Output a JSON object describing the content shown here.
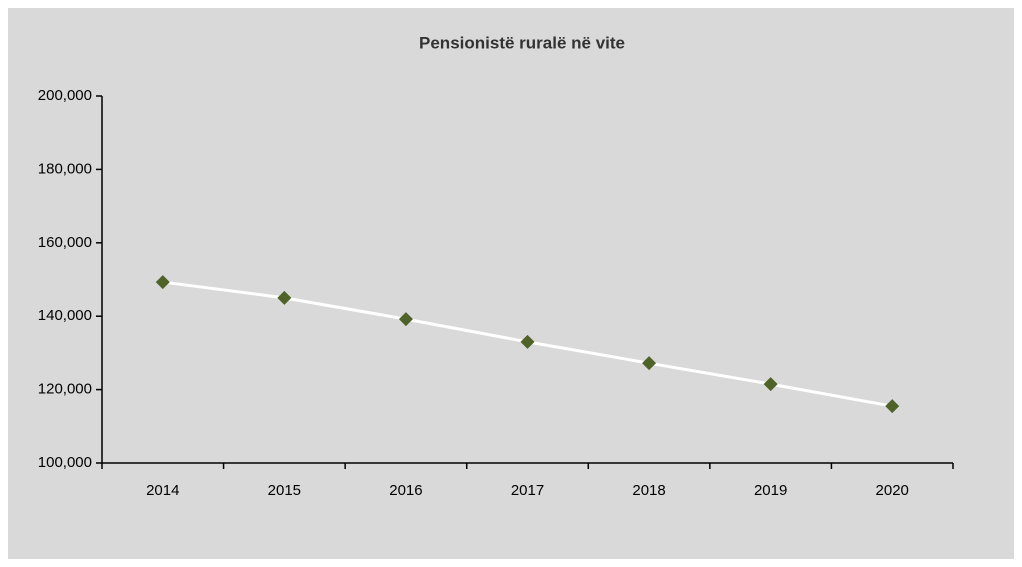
{
  "chart_data": {
    "type": "line",
    "title": "Pensionistë ruralë në vite",
    "categories": [
      "2014",
      "2015",
      "2016",
      "2017",
      "2018",
      "2019",
      "2020"
    ],
    "series": [
      {
        "name": "Pensionistë ruralë",
        "color": "#4f6228",
        "line_color": "#ffffff",
        "values": [
          149300,
          145000,
          139200,
          133000,
          127200,
          121500,
          115500
        ]
      }
    ],
    "ylim": [
      100000,
      200000
    ],
    "yticks": [
      {
        "value": 100000,
        "label": "100,000"
      },
      {
        "value": 120000,
        "label": "120,000"
      },
      {
        "value": 140000,
        "label": "140,000"
      },
      {
        "value": 160000,
        "label": "160,000"
      },
      {
        "value": 180000,
        "label": "180,000"
      },
      {
        "value": 200000,
        "label": "200,000"
      }
    ],
    "grid": false
  }
}
